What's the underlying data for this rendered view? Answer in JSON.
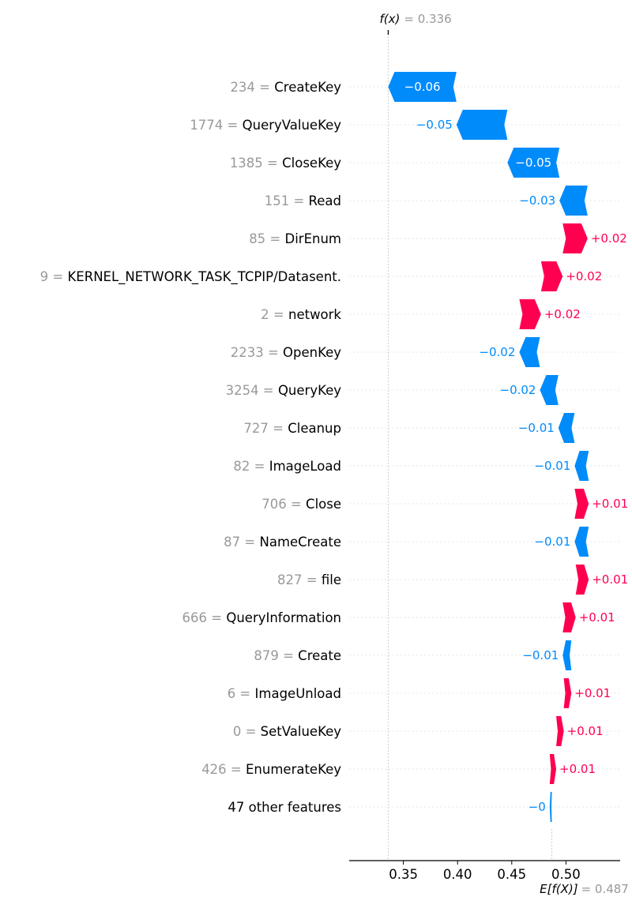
{
  "chart_data": {
    "type": "waterfall",
    "fx_label": "f(x)",
    "fx_value": 0.336,
    "fx_value_text": "= 0.336",
    "base_label": "E[f(X)]",
    "base_value": 0.487,
    "base_value_text": "= 0.487",
    "x_range": [
      0.3,
      0.55
    ],
    "x_ticks": [
      0.35,
      0.4,
      0.45,
      0.5
    ],
    "x_tick_labels": [
      "0.35",
      "0.40",
      "0.45",
      "0.50"
    ],
    "colors": {
      "negative": "#008bfb",
      "positive": "#ff0051",
      "feature_value": "#999999",
      "feature_name": "#000000"
    },
    "features": [
      {
        "value": "234",
        "name": "CreateKey",
        "start": 0.399,
        "end": 0.336,
        "shap_label": "−0.06"
      },
      {
        "value": "1774",
        "name": "QueryValueKey",
        "start": 0.446,
        "end": 0.399,
        "shap_label": "−0.05"
      },
      {
        "value": "1385",
        "name": "CloseKey",
        "start": 0.494,
        "end": 0.446,
        "shap_label": "−0.05"
      },
      {
        "value": "151",
        "name": "Read",
        "start": 0.52,
        "end": 0.494,
        "shap_label": "−0.03"
      },
      {
        "value": "85",
        "name": "DirEnum",
        "start": 0.497,
        "end": 0.52,
        "shap_label": "+0.02"
      },
      {
        "value": "9",
        "name": "KERNEL_NETWORK_TASK_TCPIP/Datasent.",
        "start": 0.477,
        "end": 0.497,
        "shap_label": "+0.02"
      },
      {
        "value": "2",
        "name": "network",
        "start": 0.457,
        "end": 0.477,
        "shap_label": "+0.02"
      },
      {
        "value": "2233",
        "name": "OpenKey",
        "start": 0.476,
        "end": 0.457,
        "shap_label": "−0.02"
      },
      {
        "value": "3254",
        "name": "QueryKey",
        "start": 0.493,
        "end": 0.476,
        "shap_label": "−0.02"
      },
      {
        "value": "727",
        "name": "Cleanup",
        "start": 0.508,
        "end": 0.493,
        "shap_label": "−0.01"
      },
      {
        "value": "82",
        "name": "ImageLoad",
        "start": 0.521,
        "end": 0.508,
        "shap_label": "−0.01"
      },
      {
        "value": "706",
        "name": "Close",
        "start": 0.508,
        "end": 0.521,
        "shap_label": "+0.01"
      },
      {
        "value": "87",
        "name": "NameCreate",
        "start": 0.521,
        "end": 0.508,
        "shap_label": "−0.01"
      },
      {
        "value": "827",
        "name": "file",
        "start": 0.509,
        "end": 0.521,
        "shap_label": "+0.01"
      },
      {
        "value": "666",
        "name": "QueryInformation",
        "start": 0.497,
        "end": 0.509,
        "shap_label": "+0.01"
      },
      {
        "value": "879",
        "name": "Create",
        "start": 0.505,
        "end": 0.497,
        "shap_label": "−0.01"
      },
      {
        "value": "6",
        "name": "ImageUnload",
        "start": 0.498,
        "end": 0.505,
        "shap_label": "+0.01"
      },
      {
        "value": "0",
        "name": "SetValueKey",
        "start": 0.491,
        "end": 0.498,
        "shap_label": "+0.01"
      },
      {
        "value": "426",
        "name": "EnumerateKey",
        "start": 0.485,
        "end": 0.491,
        "shap_label": "+0.01"
      },
      {
        "value": "",
        "name": "47 other features",
        "start": 0.487,
        "end": 0.485,
        "shap_label": "−0"
      }
    ]
  }
}
